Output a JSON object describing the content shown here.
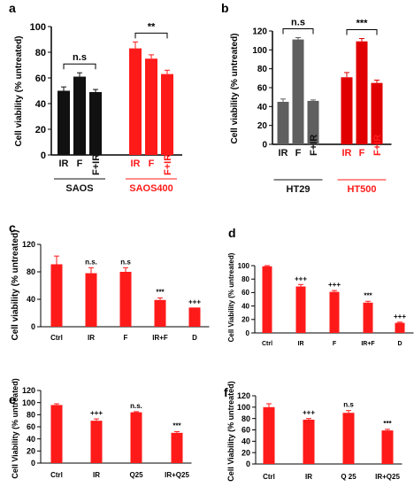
{
  "colors": {
    "black": "#111111",
    "red": "#ff1a1a",
    "gray": "#5f5f5f",
    "darkred": "#e10000"
  },
  "chart_data": [
    {
      "panel": "a",
      "type": "bar",
      "ylabel": "Cell viability (% untreated)",
      "ylim": [
        0,
        100
      ],
      "yticks": [
        0,
        20,
        40,
        60,
        80,
        100
      ],
      "categories": [
        "IR",
        "F",
        "F+IR",
        "IR",
        "F",
        "F+IR"
      ],
      "values": [
        50,
        61,
        49,
        83,
        75,
        63
      ],
      "errors": [
        3,
        3,
        2,
        5,
        3,
        3
      ],
      "bar_colors": [
        "black",
        "black",
        "black",
        "red",
        "red",
        "red"
      ],
      "groups": [
        {
          "label": "SAOS",
          "color": "black",
          "from": 0,
          "to": 2
        },
        {
          "label": "SAOS400",
          "color": "red",
          "from": 3,
          "to": 5
        }
      ],
      "brackets": [
        {
          "from": 0,
          "to": 2,
          "text": "n.s"
        },
        {
          "from": 3,
          "to": 5,
          "text": "**"
        }
      ],
      "annotations": []
    },
    {
      "panel": "b",
      "type": "bar",
      "ylabel": "Cell viability (% untreated)",
      "ylim": [
        0,
        120
      ],
      "yticks": [
        0,
        20,
        40,
        60,
        80,
        100,
        120
      ],
      "categories": [
        "IR",
        "F",
        "F+IR",
        "IR",
        "F",
        "F+IR"
      ],
      "values": [
        45,
        111,
        46,
        71,
        109,
        65
      ],
      "errors": [
        3,
        2,
        1,
        5,
        3,
        3
      ],
      "bar_colors": [
        "gray",
        "gray",
        "gray",
        "darkred",
        "darkred",
        "darkred"
      ],
      "groups": [
        {
          "label": "HT29",
          "color": "black",
          "from": 0,
          "to": 2
        },
        {
          "label": "HT500",
          "color": "red",
          "from": 3,
          "to": 5
        }
      ],
      "brackets": [
        {
          "from": 0,
          "to": 2,
          "text": "n.s"
        },
        {
          "from": 3,
          "to": 5,
          "text": "***"
        }
      ],
      "annotations": []
    },
    {
      "panel": "c",
      "type": "bar",
      "ylabel": "Cell viability (% untreated)",
      "ylim": [
        0,
        120
      ],
      "yticks": [
        0,
        40,
        80,
        120
      ],
      "categories": [
        "Ctrl",
        "IR",
        "F",
        "IR+F",
        "D"
      ],
      "values": [
        91,
        78,
        80,
        39,
        28
      ],
      "errors": [
        12,
        8,
        6,
        3,
        0
      ],
      "bar_colors": [
        "red",
        "red",
        "red",
        "red",
        "red"
      ],
      "groups": [],
      "brackets": [],
      "annotations": [
        "",
        "n.s.",
        "n.s",
        "***",
        "+++"
      ]
    },
    {
      "panel": "d",
      "type": "bar",
      "ylabel": "Cell Viability (% untreated)",
      "ylim": [
        0,
        100
      ],
      "yticks": [
        0,
        20,
        40,
        60,
        80,
        100
      ],
      "categories": [
        "Ctrl",
        "IR",
        "F",
        "IR+F",
        "D"
      ],
      "values": [
        99,
        69,
        61,
        45,
        15
      ],
      "errors": [
        1,
        3,
        2,
        2,
        1
      ],
      "bar_colors": [
        "red",
        "red",
        "red",
        "red",
        "red"
      ],
      "groups": [],
      "brackets": [],
      "annotations": [
        "",
        "+++",
        "+++",
        "***",
        "+++"
      ]
    },
    {
      "panel": "e",
      "type": "bar",
      "ylabel": "Cell Viability (% untreated)",
      "ylim": [
        0,
        120
      ],
      "yticks": [
        0,
        20,
        40,
        60,
        80,
        100,
        120
      ],
      "categories": [
        "Ctrl",
        "IR",
        "Q25",
        "IR+Q25"
      ],
      "values": [
        96,
        70,
        84,
        50
      ],
      "errors": [
        2,
        3,
        1,
        2
      ],
      "bar_colors": [
        "red",
        "red",
        "red",
        "red"
      ],
      "groups": [],
      "brackets": [],
      "annotations": [
        "",
        "+++",
        "n.s.",
        "***"
      ]
    },
    {
      "panel": "f",
      "type": "bar",
      "ylabel": "Cell Viability (% untreated)",
      "ylim": [
        0,
        120
      ],
      "yticks": [
        0,
        20,
        40,
        60,
        80,
        100,
        120
      ],
      "categories": [
        "Ctrl",
        "IR",
        "Q 25",
        "IR+Q25"
      ],
      "values": [
        100,
        78,
        90,
        59
      ],
      "errors": [
        6,
        2,
        4,
        2
      ],
      "bar_colors": [
        "red",
        "red",
        "red",
        "red"
      ],
      "groups": [],
      "brackets": [],
      "annotations": [
        "",
        "+++",
        "n.s",
        "***"
      ]
    }
  ]
}
